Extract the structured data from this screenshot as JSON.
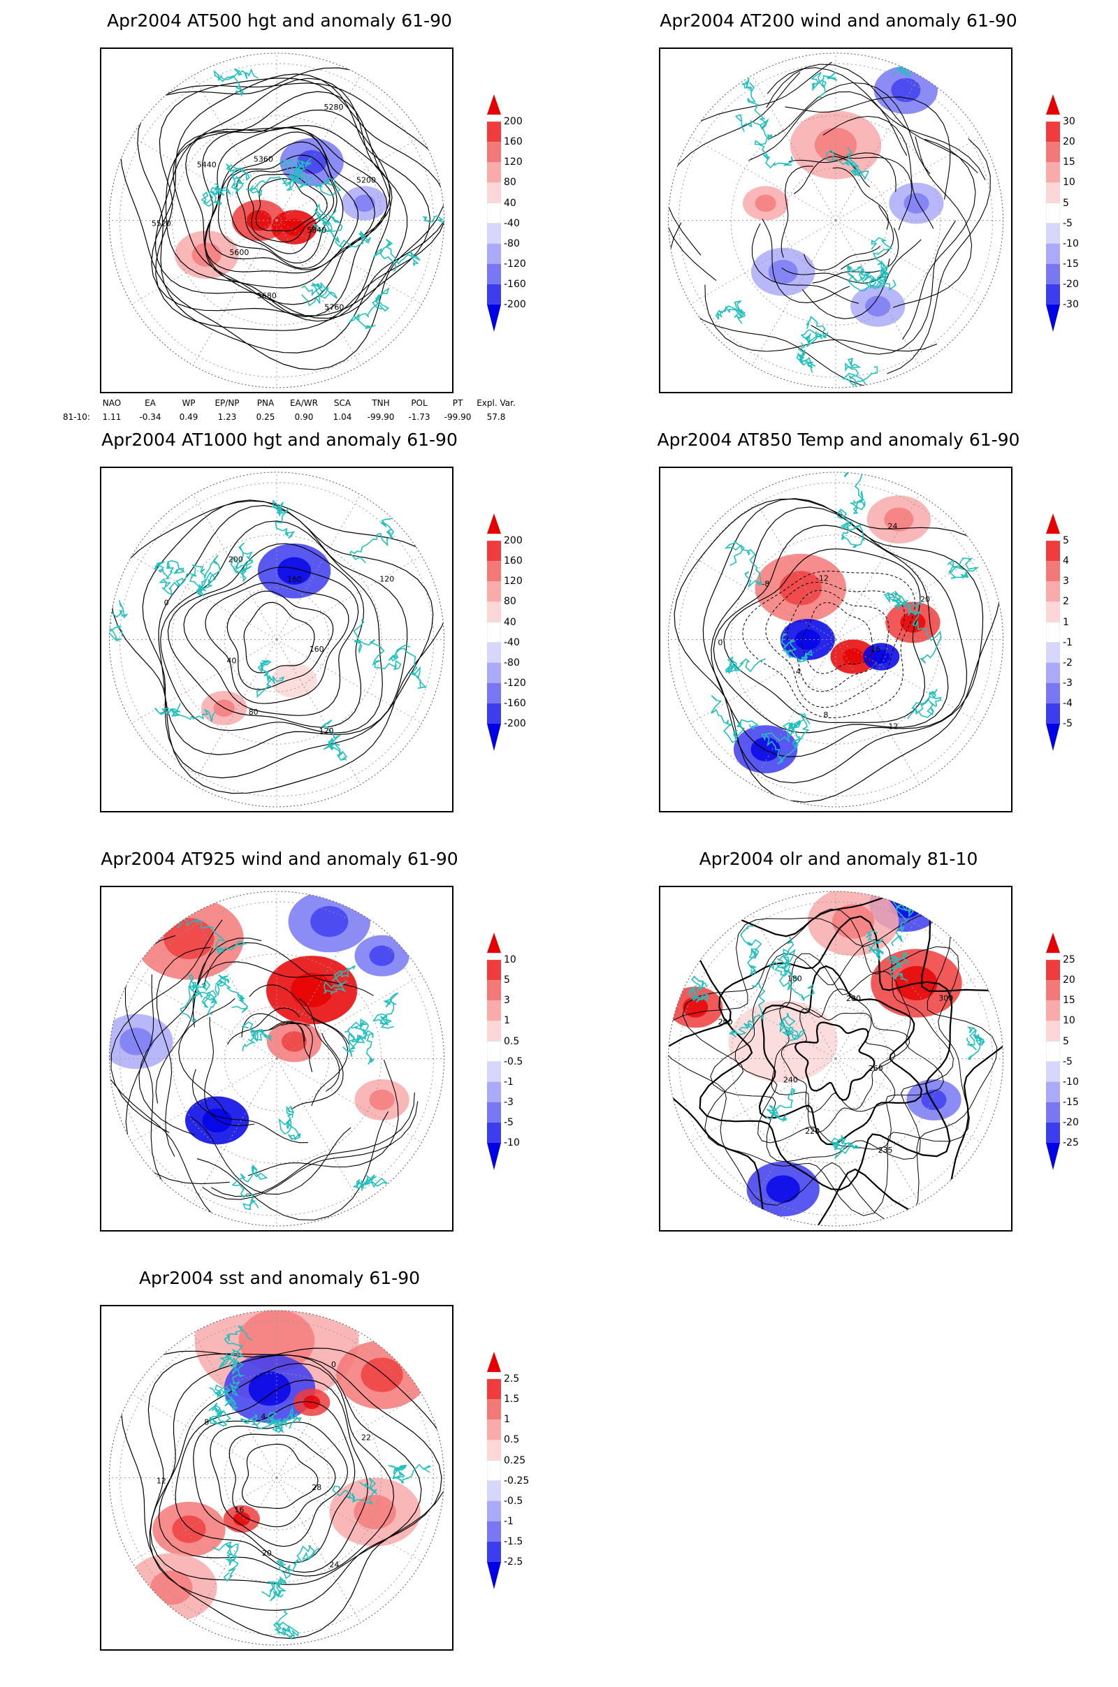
{
  "panels": [
    {
      "id": "p1",
      "title": "Apr2004 AT500 hgt and anomaly 61-90",
      "legend": [
        "200",
        "160",
        "120",
        "80",
        "40",
        "-40",
        "-80",
        "-120",
        "-160",
        "-200"
      ],
      "contour_labels": [
        "5840",
        "5760",
        "5680",
        "5600",
        "5520",
        "5440",
        "5360",
        "5280",
        "5200"
      ],
      "indices": {
        "row_label": "81-10:",
        "headers": [
          "NAO",
          "EA",
          "WP",
          "EP/NP",
          "PNA",
          "EA/WR",
          "SCA",
          "TNH",
          "POL",
          "PT",
          "Expl. Var."
        ],
        "values": [
          "1.11",
          "-0.34",
          "0.49",
          "1.23",
          "0.25",
          "0.90",
          "1.04",
          "-99.90",
          "-1.73",
          "-99.90",
          "57.8"
        ]
      }
    },
    {
      "id": "p2",
      "title": "Apr2004 AT200 wind and anomaly 61-90",
      "legend": [
        "30",
        "20",
        "15",
        "10",
        "5",
        "-5",
        "-10",
        "-15",
        "-20",
        "-30"
      ],
      "contour_labels": []
    },
    {
      "id": "p3",
      "title": "Apr2004 AT1000 hgt and anomaly 61-90",
      "legend": [
        "200",
        "160",
        "120",
        "80",
        "40",
        "-40",
        "-80",
        "-120",
        "-160",
        "-200"
      ],
      "contour_labels": [
        "160",
        "120",
        "80",
        "40",
        "0",
        "200",
        "160",
        "120"
      ]
    },
    {
      "id": "p4",
      "title": "Apr2004 AT850 Temp and anomaly 61-90",
      "legend": [
        "5",
        "4",
        "3",
        "2",
        "1",
        "-1",
        "-2",
        "-3",
        "-4",
        "-5"
      ],
      "contour_labels": [
        "16",
        "12",
        "8",
        "4",
        "0",
        "-8",
        "-12",
        "24",
        "20"
      ]
    },
    {
      "id": "p5",
      "title": "Apr2004 AT925 wind and anomaly 61-90",
      "legend": [
        "10",
        "5",
        "3",
        "1",
        "0.5",
        "-0.5",
        "-1",
        "-3",
        "-5",
        "-10"
      ],
      "contour_labels": []
    },
    {
      "id": "p6",
      "title": "Apr2004 olr and anomaly 81-10",
      "legend": [
        "25",
        "20",
        "15",
        "10",
        "5",
        "-5",
        "-10",
        "-15",
        "-20",
        "-25"
      ],
      "contour_labels": [
        "260",
        "235",
        "220",
        "240",
        "200",
        "180",
        "280",
        "300"
      ]
    },
    {
      "id": "p7",
      "title": "Apr2004 sst and anomaly 61-90",
      "legend": [
        "2.5",
        "1.5",
        "1",
        "0.5",
        "0.25",
        "-0.25",
        "-0.5",
        "-1",
        "-1.5",
        "-2.5"
      ],
      "contour_labels": [
        "28",
        "24",
        "20",
        "16",
        "12",
        "8",
        "4",
        "0",
        "22"
      ]
    }
  ],
  "colors": {
    "coast": "#22bfbf",
    "pos": [
      "#e60000",
      "#f03c3c",
      "#f57878",
      "#f9aaaa",
      "#fcd7d7"
    ],
    "neg": [
      "#d7d7fc",
      "#aaaaf9",
      "#7878f5",
      "#3c3cf0",
      "#0000e6"
    ]
  }
}
